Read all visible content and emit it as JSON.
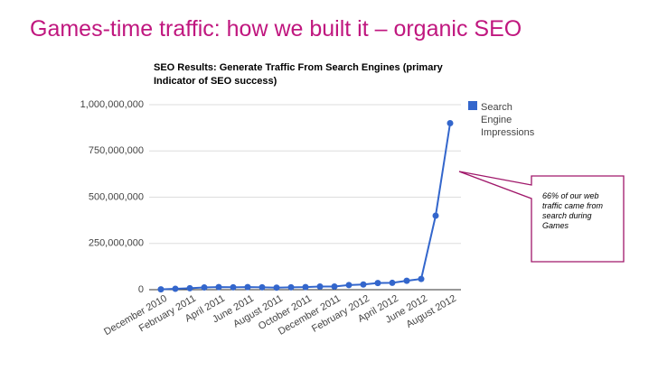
{
  "slide_title": "Games-time traffic: how we built it – organic SEO",
  "chart_data": {
    "type": "line",
    "title": "SEO Results: Generate Traffic From Search Engines (primary Indicator of SEO success)",
    "annotation": "66% of our web traffic came from search during Games",
    "categories": [
      "December 2010",
      null,
      "February 2011",
      null,
      "April 2011",
      null,
      "June 2011",
      null,
      "August 2011",
      null,
      "October 2011",
      null,
      "December 2011",
      null,
      "February 2012",
      null,
      "April 2012",
      null,
      "June 2012",
      null,
      "August 2012"
    ],
    "series": [
      {
        "name": "Search Engine Impressions",
        "color": "#3366cc",
        "values": [
          2000000,
          5000000,
          8000000,
          12000000,
          14000000,
          13000000,
          14000000,
          13000000,
          11000000,
          13000000,
          14000000,
          17000000,
          17000000,
          25000000,
          28000000,
          36000000,
          37000000,
          48000000,
          58000000,
          400000000,
          900000000
        ]
      }
    ],
    "ylim": [
      0,
      1000000000
    ],
    "yticks": [
      0,
      {
        "value": 250000000,
        "label": "250,000,000"
      },
      {
        "value": 500000000,
        "label": "500,000,000"
      },
      {
        "value": 750000000,
        "label": "750,000,000"
      },
      {
        "value": 1000000000,
        "label": "1,000,000,000"
      }
    ],
    "grid": true,
    "legend": "right"
  }
}
